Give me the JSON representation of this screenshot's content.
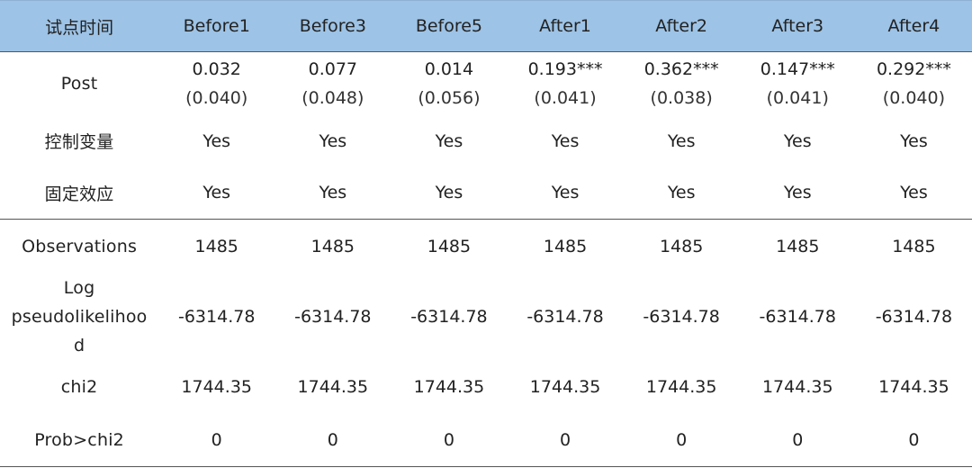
{
  "header": {
    "first": "试点时间",
    "columns": [
      "Before1",
      "Before3",
      "Before5",
      "After1",
      "After2",
      "After3",
      "After4"
    ]
  },
  "rows": {
    "post": {
      "label": "Post",
      "coef": [
        "0.032",
        "0.077",
        "0.014",
        "0.193***",
        "0.362***",
        "0.147***",
        "0.292***"
      ],
      "se": [
        "(0.040)",
        "(0.048)",
        "(0.056)",
        "(0.041)",
        "(0.038)",
        "(0.041)",
        "(0.040)"
      ]
    },
    "controls": {
      "label": "控制变量",
      "values": [
        "Yes",
        "Yes",
        "Yes",
        "Yes",
        "Yes",
        "Yes",
        "Yes"
      ]
    },
    "fixed_effects": {
      "label": "固定效应",
      "values": [
        "Yes",
        "Yes",
        "Yes",
        "Yes",
        "Yes",
        "Yes",
        "Yes"
      ]
    },
    "observations": {
      "label": "Observations",
      "values": [
        "1485",
        "1485",
        "1485",
        "1485",
        "1485",
        "1485",
        "1485"
      ]
    },
    "log_pseudolikelihood": {
      "label_lines": [
        "Log",
        "pseudolikelihoo",
        "d"
      ],
      "values": [
        "-6314.78",
        "-6314.78",
        "-6314.78",
        "-6314.78",
        "-6314.78",
        "-6314.78",
        "-6314.78"
      ]
    },
    "chi2": {
      "label": "chi2",
      "values": [
        "1744.35",
        "1744.35",
        "1744.35",
        "1744.35",
        "1744.35",
        "1744.35",
        "1744.35"
      ]
    },
    "prob_chi2": {
      "label": "Prob>chi2",
      "values": [
        "0",
        "0",
        "0",
        "0",
        "0",
        "0",
        "0"
      ]
    }
  },
  "colors": {
    "header_bg": "#9dc3e6",
    "rule": "#555555"
  }
}
